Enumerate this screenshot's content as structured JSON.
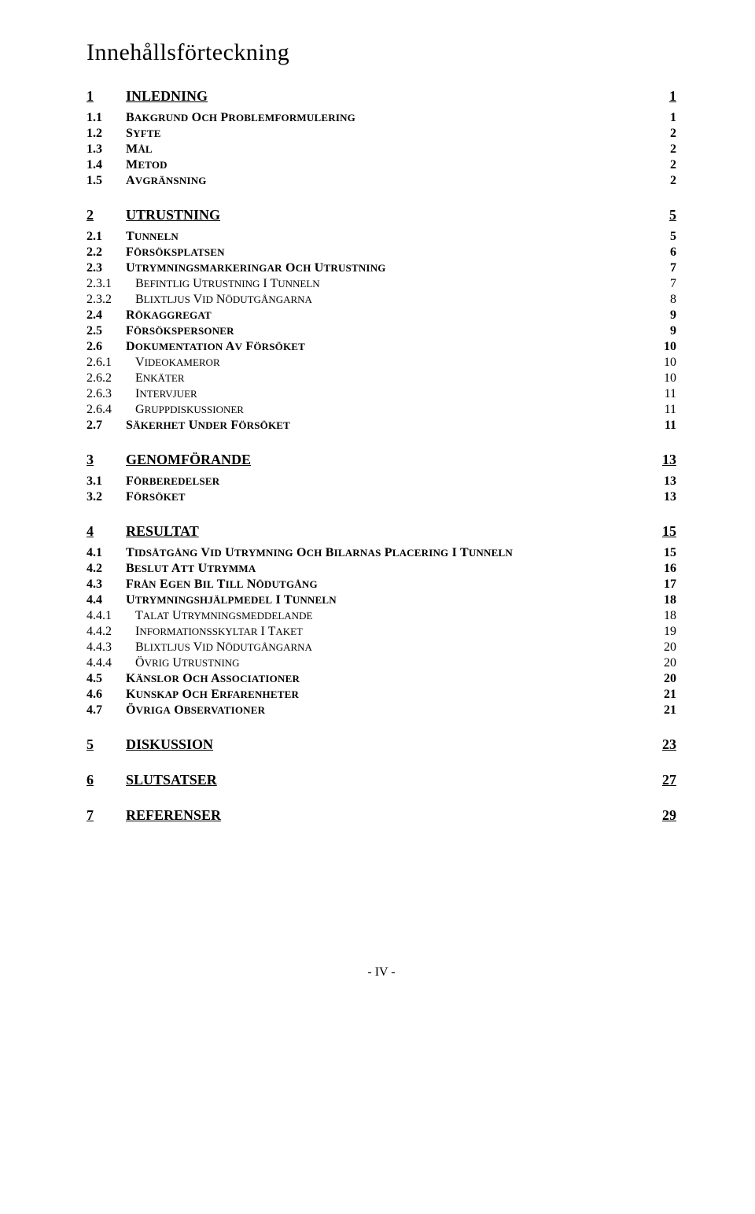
{
  "title": "Innehållsförteckning",
  "footer": "- IV -",
  "toc": [
    {
      "level": 1,
      "num": "1",
      "label": "INLEDNING",
      "page": "1"
    },
    {
      "level": 2,
      "num": "1.1",
      "label": "BAKGRUND OCH PROBLEMFORMULERING",
      "page": "1"
    },
    {
      "level": 2,
      "num": "1.2",
      "label": "SYFTE",
      "page": "2"
    },
    {
      "level": 2,
      "num": "1.3",
      "label": "MÅL",
      "page": "2"
    },
    {
      "level": 2,
      "num": "1.4",
      "label": "METOD",
      "page": "2"
    },
    {
      "level": 2,
      "num": "1.5",
      "label": "AVGRÄNSNING",
      "page": "2"
    },
    {
      "level": 1,
      "num": "2",
      "label": "UTRUSTNING",
      "page": "5"
    },
    {
      "level": 2,
      "num": "2.1",
      "label": "TUNNELN",
      "page": "5"
    },
    {
      "level": 2,
      "num": "2.2",
      "label": "FÖRSÖKSPLATSEN",
      "page": "6"
    },
    {
      "level": 2,
      "num": "2.3",
      "label": "UTRYMNINGSMARKERINGAR OCH UTRUSTNING",
      "page": "7"
    },
    {
      "level": 3,
      "num": "2.3.1",
      "label": "BEFINTLIG UTRUSTNING I TUNNELN",
      "page": "7"
    },
    {
      "level": 3,
      "num": "2.3.2",
      "label": "BLIXTLJUS VID NÖDUTGÅNGARNA",
      "page": "8"
    },
    {
      "level": 2,
      "num": "2.4",
      "label": "RÖKAGGREGAT",
      "page": "9"
    },
    {
      "level": 2,
      "num": "2.5",
      "label": "FÖRSÖKSPERSONER",
      "page": "9"
    },
    {
      "level": 2,
      "num": "2.6",
      "label": "DOKUMENTATION AV FÖRSÖKET",
      "page": "10"
    },
    {
      "level": 3,
      "num": "2.6.1",
      "label": "VIDEOKAMEROR",
      "page": "10"
    },
    {
      "level": 3,
      "num": "2.6.2",
      "label": "ENKÄTER",
      "page": "10"
    },
    {
      "level": 3,
      "num": "2.6.3",
      "label": "INTERVJUER",
      "page": "11"
    },
    {
      "level": 3,
      "num": "2.6.4",
      "label": "GRUPPDISKUSSIONER",
      "page": "11"
    },
    {
      "level": 2,
      "num": "2.7",
      "label": "SÄKERHET UNDER FÖRSÖKET",
      "page": "11"
    },
    {
      "level": 1,
      "num": "3",
      "label": "GENOMFÖRANDE",
      "page": "13"
    },
    {
      "level": 2,
      "num": "3.1",
      "label": "FÖRBEREDELSER",
      "page": "13"
    },
    {
      "level": 2,
      "num": "3.2",
      "label": "FÖRSÖKET",
      "page": "13"
    },
    {
      "level": 1,
      "num": "4",
      "label": "RESULTAT",
      "page": "15"
    },
    {
      "level": 2,
      "num": "4.1",
      "label": "TIDSÅTGÅNG VID UTRYMNING OCH BILARNAS PLACERING I TUNNELN",
      "page": "15"
    },
    {
      "level": 2,
      "num": "4.2",
      "label": "BESLUT ATT UTRYMMA",
      "page": "16"
    },
    {
      "level": 2,
      "num": "4.3",
      "label": "FRÅN EGEN BIL TILL NÖDUTGÅNG",
      "page": "17"
    },
    {
      "level": 2,
      "num": "4.4",
      "label": "UTRYMNINGSHJÄLPMEDEL I TUNNELN",
      "page": "18"
    },
    {
      "level": 3,
      "num": "4.4.1",
      "label": "TALAT UTRYMNINGSMEDDELANDE",
      "page": "18"
    },
    {
      "level": 3,
      "num": "4.4.2",
      "label": "INFORMATIONSSKYLTAR I TAKET",
      "page": "19"
    },
    {
      "level": 3,
      "num": "4.4.3",
      "label": "BLIXTLJUS VID NÖDUTGÅNGARNA",
      "page": "20"
    },
    {
      "level": 3,
      "num": "4.4.4",
      "label": "ÖVRIG UTRUSTNING",
      "page": "20"
    },
    {
      "level": 2,
      "num": "4.5",
      "label": "KÄNSLOR OCH ASSOCIATIONER",
      "page": "20"
    },
    {
      "level": 2,
      "num": "4.6",
      "label": "KUNSKAP OCH ERFARENHETER",
      "page": "21"
    },
    {
      "level": 2,
      "num": "4.7",
      "label": "ÖVRIGA OBSERVATIONER",
      "page": "21"
    },
    {
      "level": 1,
      "num": "5",
      "label": "DISKUSSION",
      "page": "23"
    },
    {
      "level": 1,
      "num": "6",
      "label": "SLUTSATSER",
      "page": "27"
    },
    {
      "level": 1,
      "num": "7",
      "label": "REFERENSER",
      "page": "29"
    }
  ]
}
